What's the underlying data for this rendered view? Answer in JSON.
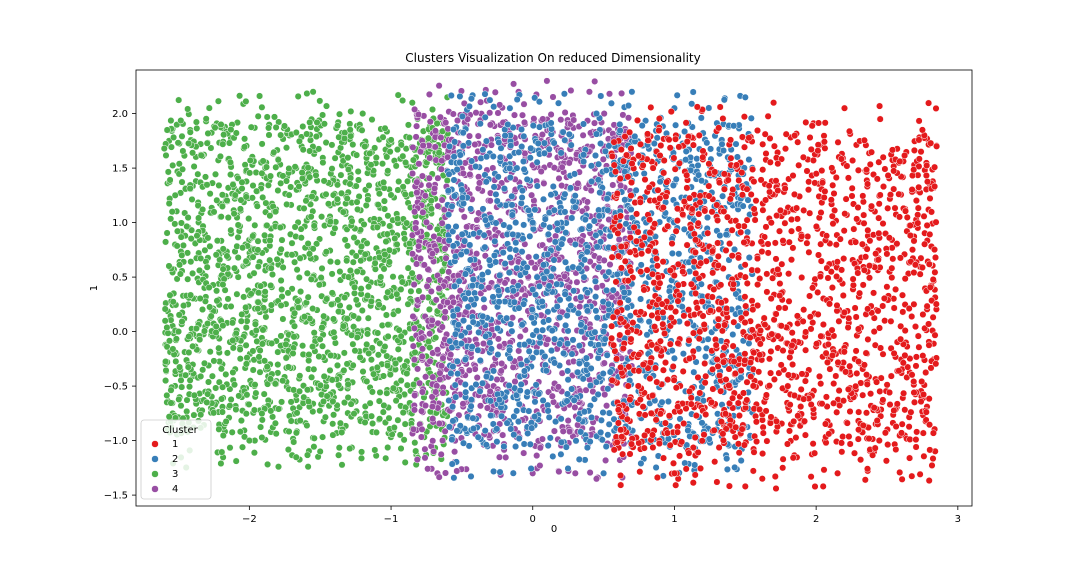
{
  "chart_data": {
    "type": "scatter",
    "title": "Clusters Visualization On reduced Dimensionality",
    "xlabel": "0",
    "ylabel": "1",
    "xlim": [
      -2.8,
      3.1
    ],
    "ylim": [
      -1.6,
      2.4
    ],
    "xticks": [
      -2,
      -1,
      0,
      1,
      2,
      3
    ],
    "yticks": [
      -1.5,
      -1.0,
      -0.5,
      0.0,
      0.5,
      1.0,
      1.5,
      2.0
    ],
    "xtick_labels": [
      "−2",
      "−1",
      "0",
      "1",
      "2",
      "3"
    ],
    "ytick_labels": [
      "−1.5",
      "−1.0",
      "−0.5",
      "0.0",
      "0.5",
      "1.0",
      "1.5",
      "2.0"
    ],
    "grid": false,
    "legend": {
      "title": "Cluster",
      "placement": "lower-left",
      "entries": [
        "1",
        "2",
        "3",
        "4"
      ]
    },
    "series": [
      {
        "name": "1",
        "color": "#e41a1c",
        "x_range": [
          0.55,
          2.85
        ],
        "y_range": [
          -1.45,
          2.1
        ],
        "approx_points": 1800,
        "sample_points": [
          [
            0.62,
            -1.32
          ],
          [
            1.0,
            -1.3
          ],
          [
            1.3,
            -1.38
          ],
          [
            1.5,
            -1.42
          ],
          [
            2.05,
            -1.42
          ],
          [
            2.3,
            -0.9
          ],
          [
            2.55,
            -0.2
          ],
          [
            2.85,
            1.7
          ],
          [
            2.75,
            1.85
          ],
          [
            2.2,
            2.05
          ],
          [
            1.7,
            2.1
          ],
          [
            1.2,
            1.6
          ],
          [
            1.5,
            0.5
          ],
          [
            1.8,
            -0.5
          ],
          [
            1.1,
            0.2
          ]
        ]
      },
      {
        "name": "2",
        "color": "#377eb8",
        "x_range": [
          -0.6,
          1.55
        ],
        "y_range": [
          -1.35,
          2.2
        ],
        "approx_points": 1600,
        "sample_points": [
          [
            0.45,
            2.0
          ],
          [
            0.7,
            2.2
          ],
          [
            1.0,
            2.05
          ],
          [
            1.5,
            2.15
          ],
          [
            0.6,
            1.5
          ],
          [
            0.3,
            0.8
          ],
          [
            0.5,
            0.0
          ],
          [
            0.2,
            -0.8
          ],
          [
            0.5,
            -1.3
          ],
          [
            -0.5,
            1.3
          ],
          [
            0.0,
            1.0
          ],
          [
            0.8,
            1.0
          ]
        ]
      },
      {
        "name": "3",
        "color": "#4daf4a",
        "x_range": [
          -2.6,
          -0.6
        ],
        "y_range": [
          -1.25,
          2.2
        ],
        "approx_points": 2200,
        "sample_points": [
          [
            -2.6,
            1.68
          ],
          [
            -2.5,
            0.0
          ],
          [
            -2.45,
            -0.4
          ],
          [
            -2.3,
            -0.65
          ],
          [
            -2.2,
            1.9
          ],
          [
            -1.55,
            2.2
          ],
          [
            -1.2,
            2.0
          ],
          [
            -0.85,
            2.1
          ],
          [
            -0.9,
            -1.2
          ],
          [
            -1.5,
            -1.1
          ],
          [
            -2.0,
            -1.0
          ],
          [
            -1.3,
            0.5
          ],
          [
            -1.6,
            1.2
          ],
          [
            -0.8,
            0.0
          ]
        ]
      },
      {
        "name": "4",
        "color": "#984ea3",
        "x_range": [
          -0.85,
          0.7
        ],
        "y_range": [
          -1.35,
          2.3
        ],
        "approx_points": 1500,
        "sample_points": [
          [
            -0.1,
            2.2
          ],
          [
            0.1,
            2.3
          ],
          [
            0.4,
            2.2
          ],
          [
            -0.6,
            1.6
          ],
          [
            -0.3,
            1.2
          ],
          [
            -0.5,
            0.0
          ],
          [
            -0.2,
            -0.8
          ],
          [
            0.0,
            -1.3
          ],
          [
            0.3,
            -1.3
          ],
          [
            0.45,
            -1.35
          ],
          [
            -0.7,
            -1.1
          ],
          [
            -0.8,
            0.5
          ]
        ]
      }
    ]
  }
}
